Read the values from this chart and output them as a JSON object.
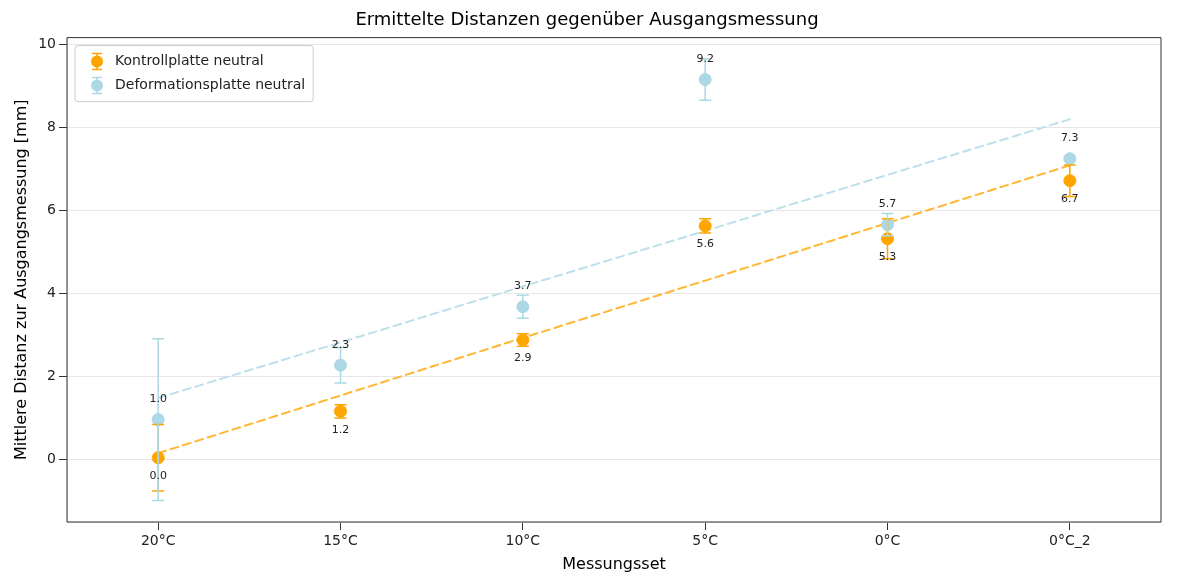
{
  "chart_data": {
    "type": "scatter",
    "title": "Ermittelte Distanzen gegenüber Ausgangsmessung",
    "xlabel": "Messungsset",
    "ylabel": "Mittlere Distanz zur Ausgangsmessung [mm]",
    "categories": [
      "20°C",
      "15°C",
      "10°C",
      "5°C",
      "0°C",
      "0°C_2"
    ],
    "ylim": [
      -1.51,
      10.17
    ],
    "yticks": [
      0,
      2,
      4,
      6,
      8,
      10
    ],
    "grid": "y",
    "legend": "top left",
    "marker": "circle",
    "series": [
      {
        "name": "Kontrollplatte neutral",
        "color": "#ffa500",
        "values": [
          0.04,
          1.16,
          2.88,
          5.63,
          5.32,
          6.72
        ],
        "errors": [
          0.8,
          0.16,
          0.15,
          0.17,
          0.48,
          0.38
        ],
        "value_labels": [
          "0.0",
          "1.2",
          "2.9",
          "5.6",
          "5.3",
          "6.7"
        ]
      },
      {
        "name": "Deformationsplatte neutral",
        "color": "#add8e6",
        "values": [
          0.96,
          2.27,
          3.68,
          9.16,
          5.66,
          7.25
        ],
        "errors": [
          1.95,
          0.43,
          0.28,
          0.5,
          0.27,
          0.05
        ],
        "value_labels": [
          "1.0",
          "2.3",
          "3.7",
          "9.2",
          "5.7",
          "7.3"
        ]
      },
      {
        "type": "line",
        "color": "#ffb733",
        "line_style": "dashed",
        "marker": "none",
        "values": [
          0.15,
          1.54,
          2.93,
          4.31,
          5.7,
          7.09
        ]
      },
      {
        "type": "line",
        "color": "#bde0eb",
        "line_style": "dashed",
        "marker": "none",
        "values": [
          1.48,
          2.82,
          4.17,
          5.51,
          6.86,
          8.2
        ]
      }
    ]
  }
}
